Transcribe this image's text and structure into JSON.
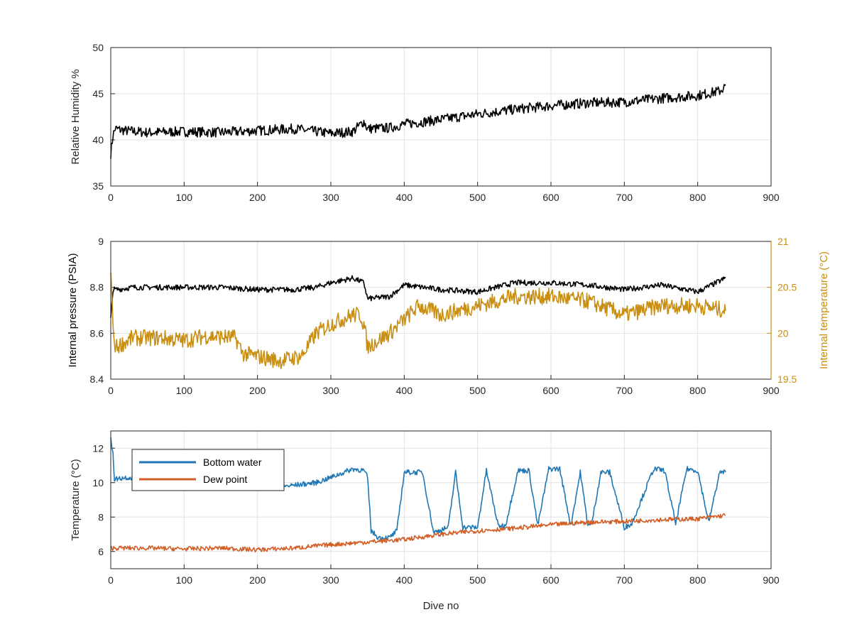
{
  "colors": {
    "black": "#000000",
    "gold": "#c98f12",
    "blue": "#1f77b4",
    "orange": "#d35f27",
    "grid": "#e3e3e3",
    "axis": "#262626"
  },
  "chart_data": [
    {
      "type": "line",
      "xlabel": "",
      "ylabel": "Relative Humidity %",
      "xlim": [
        0,
        900
      ],
      "ylim": [
        35,
        50
      ],
      "xticks": [
        0,
        100,
        200,
        300,
        400,
        500,
        600,
        700,
        800,
        900
      ],
      "yticks": [
        35,
        40,
        45,
        50
      ],
      "grid": true,
      "series": [
        {
          "name": "",
          "color": "#000000",
          "x": [
            0,
            3,
            6,
            20,
            50,
            100,
            150,
            200,
            250,
            280,
            300,
            330,
            345,
            350,
            380,
            400,
            450,
            500,
            550,
            600,
            650,
            700,
            750,
            800,
            830,
            838
          ],
          "y": [
            38.5,
            40.5,
            41.2,
            41.0,
            40.8,
            40.9,
            40.8,
            41.0,
            41.2,
            40.9,
            40.7,
            40.9,
            42.0,
            41.2,
            41.3,
            41.7,
            42.2,
            42.8,
            43.3,
            43.7,
            44.0,
            44.1,
            44.5,
            44.8,
            45.3,
            45.8
          ]
        }
      ]
    },
    {
      "type": "line",
      "xlabel": "",
      "ylabel": "Internal pressure (PSIA)",
      "ylabel_right": "Internal temperature (°C)",
      "xlim": [
        0,
        900
      ],
      "ylim": [
        8.4,
        9
      ],
      "ylim_right": [
        19.5,
        21
      ],
      "xticks": [
        0,
        100,
        200,
        300,
        400,
        500,
        600,
        700,
        800,
        900
      ],
      "yticks": [
        "8.4",
        "8.6",
        "8.8",
        "9"
      ],
      "yticks_right": [
        "19.5",
        "20",
        "20.5",
        "21"
      ],
      "grid": true,
      "series": [
        {
          "name": "",
          "axis": "left",
          "color": "#000000",
          "x": [
            0,
            3,
            8,
            30,
            100,
            150,
            200,
            250,
            280,
            300,
            330,
            345,
            350,
            380,
            400,
            450,
            500,
            550,
            600,
            650,
            700,
            750,
            800,
            838
          ],
          "y": [
            8.66,
            8.79,
            8.79,
            8.8,
            8.8,
            8.8,
            8.79,
            8.79,
            8.8,
            8.82,
            8.84,
            8.82,
            8.75,
            8.76,
            8.81,
            8.79,
            8.78,
            8.82,
            8.82,
            8.81,
            8.79,
            8.81,
            8.78,
            8.84
          ]
        },
        {
          "name": "",
          "axis": "right",
          "color": "#c98f12",
          "x": [
            0,
            4,
            8,
            30,
            70,
            100,
            130,
            170,
            180,
            230,
            260,
            280,
            300,
            330,
            340,
            345,
            350,
            380,
            400,
            420,
            450,
            500,
            550,
            600,
            650,
            700,
            750,
            800,
            838
          ],
          "y": [
            20.7,
            19.9,
            19.85,
            19.95,
            19.95,
            19.92,
            19.97,
            19.95,
            19.78,
            19.7,
            19.75,
            20.0,
            20.1,
            20.2,
            20.2,
            20.1,
            19.85,
            20.0,
            20.15,
            20.3,
            20.2,
            20.3,
            20.4,
            20.4,
            20.35,
            20.2,
            20.3,
            20.3,
            20.25
          ]
        }
      ]
    },
    {
      "type": "line",
      "xlabel": "Dive no",
      "ylabel": "Temperature (°C)",
      "xlim": [
        0,
        900
      ],
      "ylim": [
        5,
        13
      ],
      "xticks": [
        0,
        100,
        200,
        300,
        400,
        500,
        600,
        700,
        800,
        900
      ],
      "yticks": [
        6,
        8,
        10,
        12
      ],
      "grid": true,
      "legend": "top-left",
      "series": [
        {
          "name": "Bottom water",
          "color": "#1f77b4",
          "x": [
            0,
            3,
            5,
            20,
            100,
            200,
            240,
            280,
            300,
            330,
            345,
            350,
            355,
            365,
            380,
            390,
            400,
            425,
            440,
            460,
            470,
            480,
            500,
            512,
            528,
            538,
            555,
            570,
            582,
            597,
            612,
            627,
            640,
            650,
            655,
            668,
            680,
            700,
            710,
            740,
            755,
            770,
            785,
            800,
            815,
            830,
            838
          ],
          "y": [
            12.5,
            11.8,
            10.2,
            10.3,
            10.2,
            10.0,
            9.8,
            10.0,
            10.3,
            10.8,
            10.7,
            10.3,
            7.2,
            6.8,
            6.8,
            7.2,
            10.6,
            10.6,
            7.1,
            7.4,
            10.6,
            7.4,
            7.4,
            10.7,
            7.5,
            7.5,
            10.7,
            10.7,
            7.5,
            10.8,
            10.8,
            7.5,
            10.6,
            7.6,
            7.5,
            10.6,
            10.6,
            7.4,
            7.6,
            10.8,
            10.7,
            7.6,
            10.8,
            10.7,
            7.7,
            10.6,
            10.6
          ]
        },
        {
          "name": "Dew point",
          "color": "#d35f27",
          "x": [
            0,
            50,
            100,
            150,
            200,
            250,
            300,
            350,
            400,
            450,
            500,
            550,
            600,
            650,
            700,
            750,
            800,
            838
          ],
          "y": [
            6.2,
            6.2,
            6.15,
            6.2,
            6.1,
            6.2,
            6.4,
            6.55,
            6.7,
            7.0,
            7.2,
            7.35,
            7.55,
            7.7,
            7.75,
            7.85,
            7.9,
            8.1
          ]
        }
      ]
    }
  ]
}
